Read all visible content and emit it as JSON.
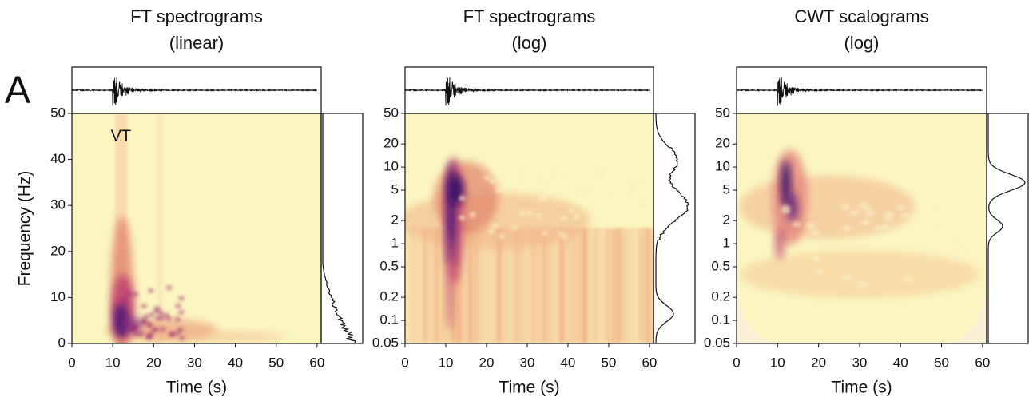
{
  "panel_label": "A",
  "chart_data": [
    {
      "type": "spectrogram",
      "title": "FT spectrograms",
      "subtitle": "(linear)",
      "x_label": "Time (s)",
      "y_label": "Frequency (Hz)",
      "xlim": [
        0,
        61
      ],
      "xticks": [
        0,
        10,
        20,
        30,
        40,
        50,
        60
      ],
      "ylim": [
        0,
        50
      ],
      "yticks": [
        0,
        10,
        20,
        30,
        40,
        50
      ],
      "log_scale": false,
      "annotations": [
        "VT"
      ]
    },
    {
      "type": "spectrogram",
      "title": "FT spectrograms",
      "subtitle": "(log)",
      "x_label": "Time (s)",
      "xlim": [
        0,
        61
      ],
      "xticks": [
        0,
        10,
        20,
        30,
        40,
        50,
        60
      ],
      "ylim": [
        0.05,
        50
      ],
      "yticks": [
        0.05,
        0.1,
        0.2,
        0.5,
        1,
        2,
        5,
        10,
        20,
        50
      ],
      "log_scale": true
    },
    {
      "type": "scalogram",
      "title": "CWT scalograms",
      "subtitle": "(log)",
      "x_label": "Time (s)",
      "xlim": [
        0,
        61
      ],
      "xticks": [
        0,
        10,
        20,
        30,
        40,
        50,
        60
      ],
      "ylim": [
        0.05,
        50
      ],
      "yticks": [
        0.05,
        0.1,
        0.2,
        0.5,
        1,
        2,
        5,
        10,
        20,
        50
      ],
      "log_scale": true
    }
  ]
}
